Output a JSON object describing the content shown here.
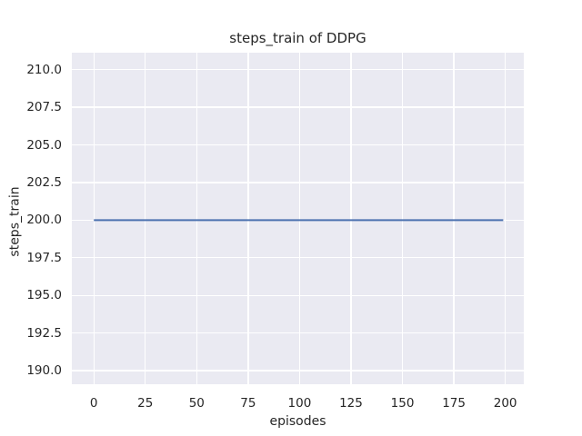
{
  "chart_data": {
    "type": "line",
    "title": "steps_train of DDPG",
    "xlabel": "episodes",
    "ylabel": "steps_train",
    "x_ticks": [
      0,
      25,
      50,
      75,
      100,
      125,
      150,
      175,
      200
    ],
    "x_tick_labels": [
      "0",
      "25",
      "50",
      "75",
      "100",
      "125",
      "150",
      "175",
      "200"
    ],
    "y_ticks": [
      190.0,
      192.5,
      195.0,
      197.5,
      200.0,
      202.5,
      205.0,
      207.5,
      210.0
    ],
    "y_tick_labels": [
      "190.0",
      "192.5",
      "195.0",
      "197.5",
      "200.0",
      "202.5",
      "205.0",
      "207.5",
      "210.0"
    ],
    "xlim": [
      -10.7,
      209.0
    ],
    "ylim": [
      189.1,
      211.13
    ],
    "grid": true,
    "legend": "none",
    "style": {
      "figure_bg": "#ffffff",
      "plot_bg": "#eaeaf2",
      "grid_color": "#ffffff",
      "text_color": "#262626",
      "line_color": "#4c72b0",
      "line_width": 2
    },
    "series": [
      {
        "name": "steps_train",
        "points": [
          {
            "x": 0,
            "y": 200
          },
          {
            "x": 199,
            "y": 200
          }
        ]
      }
    ]
  }
}
